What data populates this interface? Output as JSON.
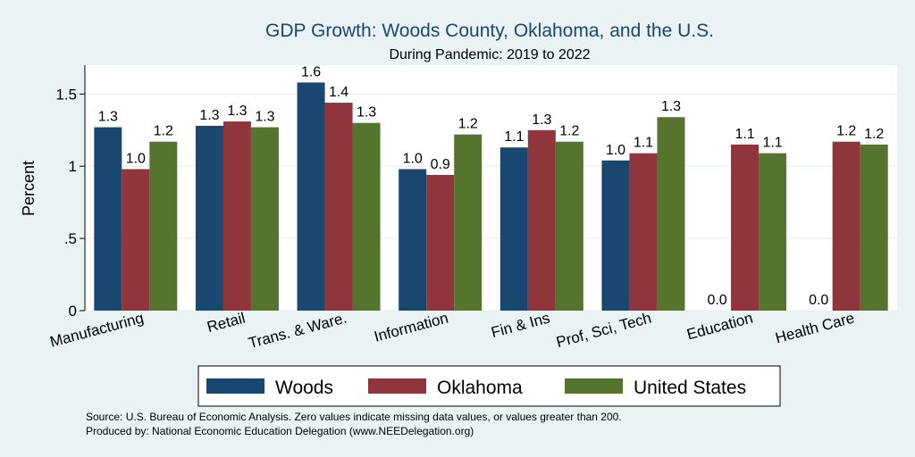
{
  "chart_data": {
    "type": "bar",
    "title": "GDP Growth: Woods County, Oklahoma, and the U.S.",
    "subtitle": "During Pandemic: 2019 to 2022",
    "xlabel": "",
    "ylabel": "Percent",
    "ylim": [
      0,
      1.7
    ],
    "yticks": [
      0,
      0.5,
      1,
      1.5
    ],
    "ytick_labels": [
      "0",
      ".5",
      "1",
      "1.5"
    ],
    "categories": [
      "Manufacturing",
      "Retail",
      "Trans. & Ware.",
      "Information",
      "Fin & Ins",
      "Prof, Sci, Tech",
      "Education",
      "Health Care"
    ],
    "series": [
      {
        "name": "Woods",
        "color": "#1a476f",
        "values": [
          1.27,
          1.28,
          1.58,
          0.98,
          1.13,
          1.04,
          0,
          0
        ],
        "labels": [
          "1.3",
          "1.3",
          "1.6",
          "1.0",
          "1.1",
          "1.0",
          "0.0",
          "0.0"
        ]
      },
      {
        "name": "Oklahoma",
        "color": "#90353b",
        "values": [
          0.98,
          1.31,
          1.44,
          0.94,
          1.25,
          1.09,
          1.15,
          1.17
        ],
        "labels": [
          "1.0",
          "1.3",
          "1.4",
          "0.9",
          "1.3",
          "1.1",
          "1.1",
          "1.2"
        ]
      },
      {
        "name": "United States",
        "color": "#55752f",
        "values": [
          1.17,
          1.27,
          1.3,
          1.22,
          1.17,
          1.34,
          1.09,
          1.15
        ],
        "labels": [
          "1.2",
          "1.3",
          "1.3",
          "1.2",
          "1.2",
          "1.3",
          "1.1",
          "1.2"
        ]
      }
    ],
    "legend_position": "bottom",
    "grid": true
  },
  "footer": {
    "source": "Source: U.S. Bureau of Economic Analysis. Zero values indicate missing data values, or values greater than 200.",
    "produced_by": "Produced by: National Economic Education Delegation (www.NEEDelegation.org)"
  }
}
